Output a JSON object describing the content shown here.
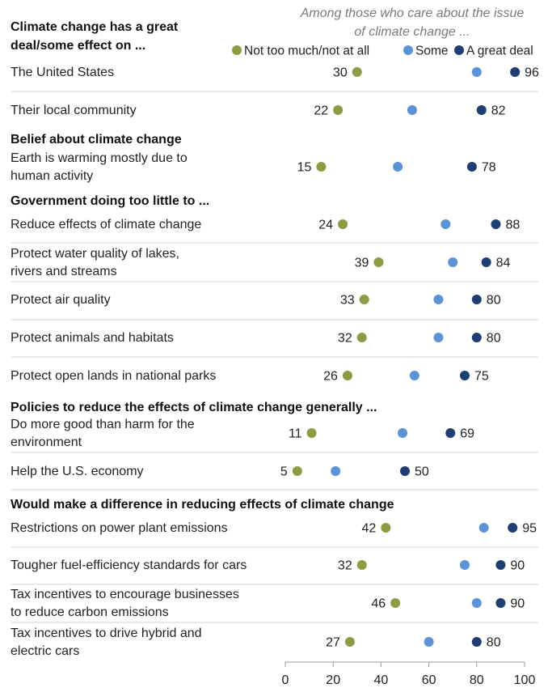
{
  "title_lines": [
    "Climate change has a great",
    "deal/some effect on ..."
  ],
  "subtitle_lines": [
    "Among those who care about the issue",
    "of climate change ..."
  ],
  "colors": {
    "low": "#8c9b44",
    "mid": "#5b93d6",
    "high": "#1f3f72"
  },
  "chart_data": {
    "type": "scatter",
    "xlim": [
      0,
      100
    ],
    "x_ticks": [
      "0",
      "20",
      "40",
      "60",
      "80",
      "100"
    ],
    "legend": [
      {
        "key": "low",
        "label": "Not too much/not at all"
      },
      {
        "key": "mid",
        "label": "Some"
      },
      {
        "key": "high",
        "label": "A great deal"
      }
    ],
    "rows": [
      {
        "lines": [
          "The United States"
        ],
        "low": 30,
        "mid": 80,
        "high": 96
      },
      {
        "lines": [
          "Their local community"
        ],
        "low": 22,
        "mid": 53,
        "high": 82
      },
      {
        "section": "Belief about climate change"
      },
      {
        "lines": [
          "Earth is warming mostly due to",
          "human activity"
        ],
        "low": 15,
        "mid": 47,
        "high": 78
      },
      {
        "section": "Government doing too little to ..."
      },
      {
        "lines": [
          "Reduce effects of climate change"
        ],
        "low": 24,
        "mid": 67,
        "high": 88
      },
      {
        "lines": [
          "Protect water quality of lakes,",
          "rivers and streams"
        ],
        "low": 39,
        "mid": 70,
        "high": 84
      },
      {
        "lines": [
          "Protect air quality"
        ],
        "low": 33,
        "mid": 64,
        "high": 80
      },
      {
        "lines": [
          "Protect animals and habitats"
        ],
        "low": 32,
        "mid": 64,
        "high": 80
      },
      {
        "lines": [
          "Protect open lands in national parks"
        ],
        "low": 26,
        "mid": 54,
        "high": 75
      },
      {
        "section": "Policies to reduce the effects of climate change generally ..."
      },
      {
        "lines": [
          "Do more good than harm for the",
          "environment"
        ],
        "low": 11,
        "mid": 49,
        "high": 69
      },
      {
        "lines": [
          "Help the U.S. economy"
        ],
        "low": 5,
        "mid": 21,
        "high": 50
      },
      {
        "section": "Would make a difference in reducing effects of climate change"
      },
      {
        "lines": [
          "Restrictions on power plant emissions"
        ],
        "low": 42,
        "mid": 83,
        "high": 95
      },
      {
        "lines": [
          "Tougher fuel-efficiency standards for cars"
        ],
        "low": 32,
        "mid": 75,
        "high": 90
      },
      {
        "lines": [
          "Tax incentives to encourage businesses",
          "to reduce carbon emissions"
        ],
        "low": 46,
        "mid": 80,
        "high": 90
      },
      {
        "lines": [
          "Tax incentives to drive hybrid and",
          "electric cars"
        ],
        "low": 27,
        "mid": 60,
        "high": 80
      }
    ]
  }
}
